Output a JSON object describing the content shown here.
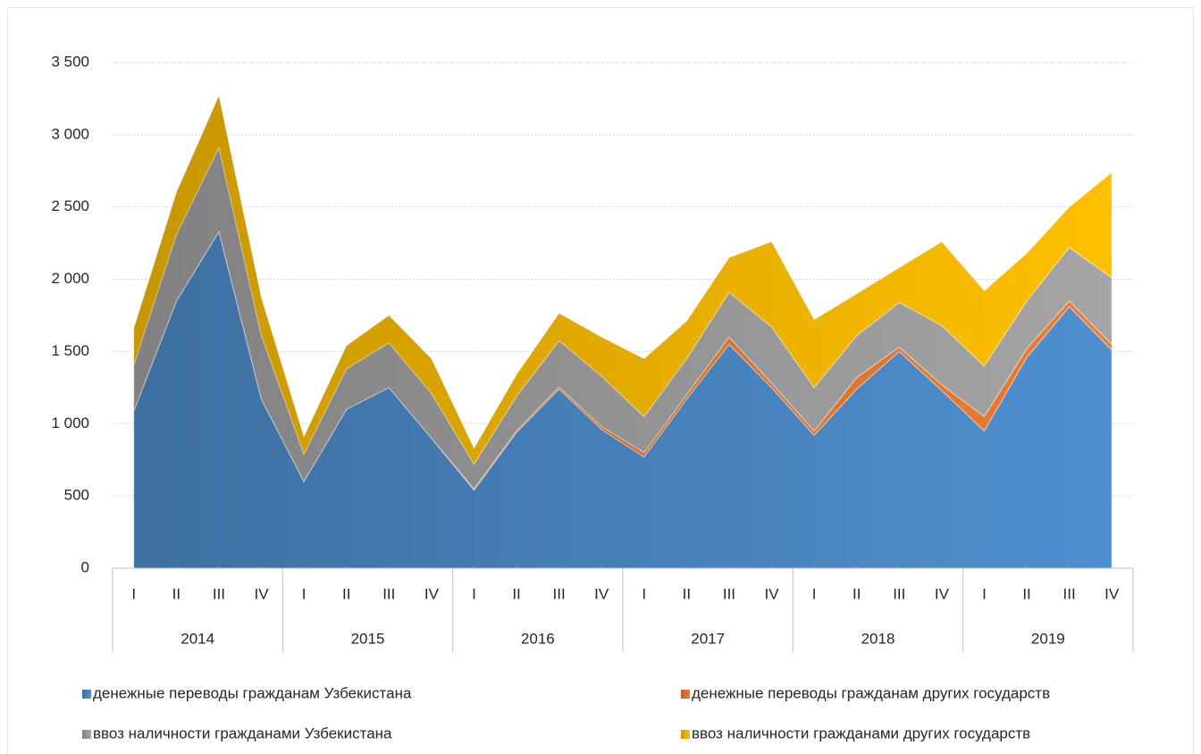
{
  "chart_data": {
    "type": "stacked_area",
    "categories": [
      "I",
      "II",
      "III",
      "IV",
      "I",
      "II",
      "III",
      "IV",
      "I",
      "II",
      "III",
      "IV",
      "I",
      "II",
      "III",
      "IV",
      "I",
      "II",
      "III",
      "IV",
      "I",
      "II",
      "III",
      "IV"
    ],
    "category_groups": [
      "2014",
      "2015",
      "2016",
      "2017",
      "2018",
      "2019"
    ],
    "series": [
      {
        "name": "денежные переводы гражданам Узбекистана",
        "color": "#4f8fcf",
        "values": [
          1090,
          1850,
          2330,
          1170,
          600,
          1100,
          1250,
          900,
          540,
          940,
          1240,
          960,
          770,
          1170,
          1550,
          1250,
          920,
          1240,
          1500,
          1230,
          950,
          1460,
          1810,
          1510
        ]
      },
      {
        "name": "денежные переводы гражданам других государств",
        "color": "#ed7d31",
        "values": [
          0,
          0,
          0,
          0,
          0,
          0,
          0,
          0,
          10,
          10,
          15,
          20,
          30,
          30,
          50,
          30,
          30,
          80,
          30,
          40,
          100,
          60,
          40,
          40
        ]
      },
      {
        "name": "ввоз наличности гражданами Узбекистана",
        "color": "#a5a5a5",
        "values": [
          320,
          460,
          580,
          440,
          190,
          280,
          310,
          310,
          170,
          240,
          320,
          350,
          250,
          250,
          310,
          390,
          300,
          290,
          310,
          410,
          350,
          330,
          370,
          460
        ]
      },
      {
        "name": "ввоз наличности гражданами других государств",
        "color": "#ffc000",
        "values": [
          250,
          290,
          360,
          260,
          120,
          160,
          190,
          240,
          110,
          150,
          190,
          270,
          400,
          260,
          240,
          590,
          470,
          290,
          240,
          580,
          520,
          330,
          280,
          730
        ]
      }
    ],
    "ylim": [
      0,
      3500
    ],
    "yticks": [
      0,
      500,
      {
        "value": 1000,
        "label": "1 000"
      },
      {
        "value": 1500,
        "label": "1 500"
      },
      {
        "value": 2000,
        "label": "2 000"
      },
      {
        "value": 2500,
        "label": "2 500"
      },
      {
        "value": 3000,
        "label": "3 000"
      },
      {
        "value": 3500,
        "label": "3 500"
      }
    ],
    "grid": true
  }
}
